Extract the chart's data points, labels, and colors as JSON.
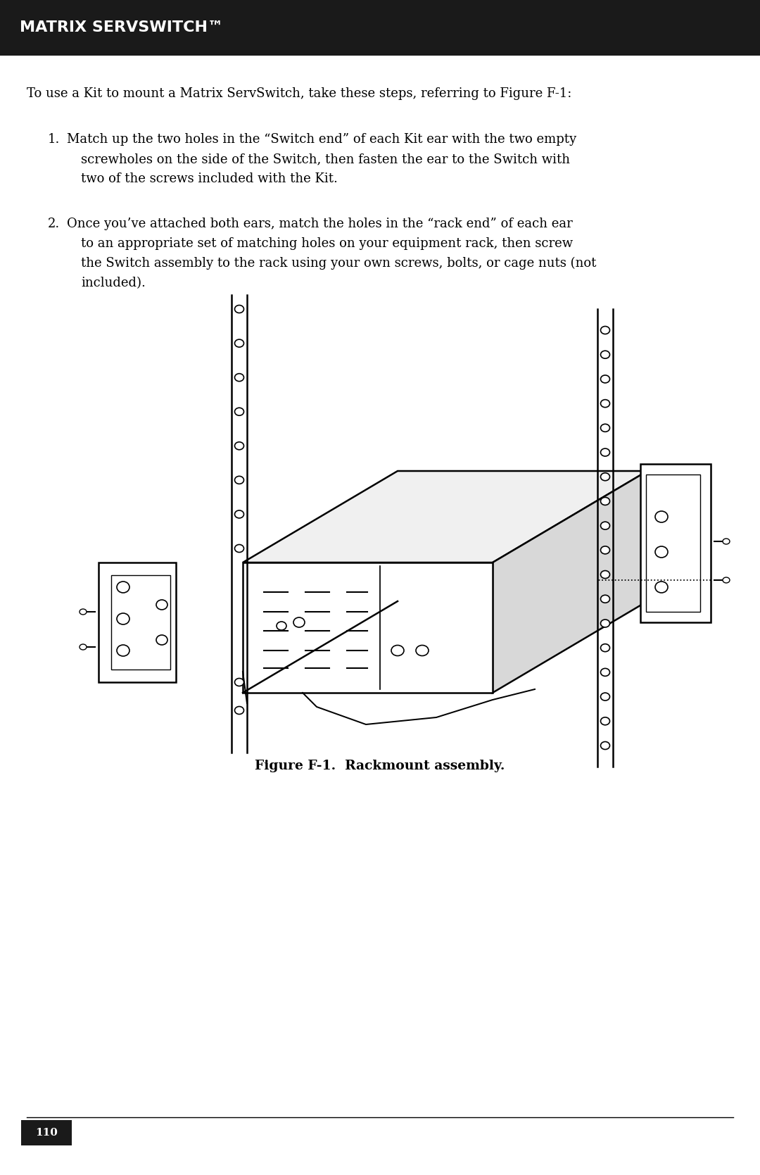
{
  "title_bar_text": "MATRIX SERVSWITCH™",
  "title_bar_bg": "#1a1a1a",
  "title_bar_text_color": "#ffffff",
  "body_bg": "#ffffff",
  "intro_text": "To use a Kit to mount a Matrix ServSwitch, take these steps, referring to Figure F-1:",
  "step1_num": "1.",
  "step1_line1": "Match up the two holes in the “Switch end” of each Kit ear with the two empty",
  "step1_line2": "screwholes on the side of the Switch, then fasten the ear to the Switch with",
  "step1_line3": "two of the screws included with the Kit.",
  "step2_num": "2.",
  "step2_line1": "Once you’ve attached both ears, match the holes in the “rack end” of each ear",
  "step2_line2": "to an appropriate set of matching holes on your equipment rack, then screw",
  "step2_line3": "the Switch assembly to the rack using your own screws, bolts, or cage nuts (not",
  "step2_line4": "included).",
  "figure_caption": "Figure F-1.  Rackmount assembly.",
  "page_number": "110",
  "lc": "#000000",
  "body_bg_hex": "#ffffff"
}
